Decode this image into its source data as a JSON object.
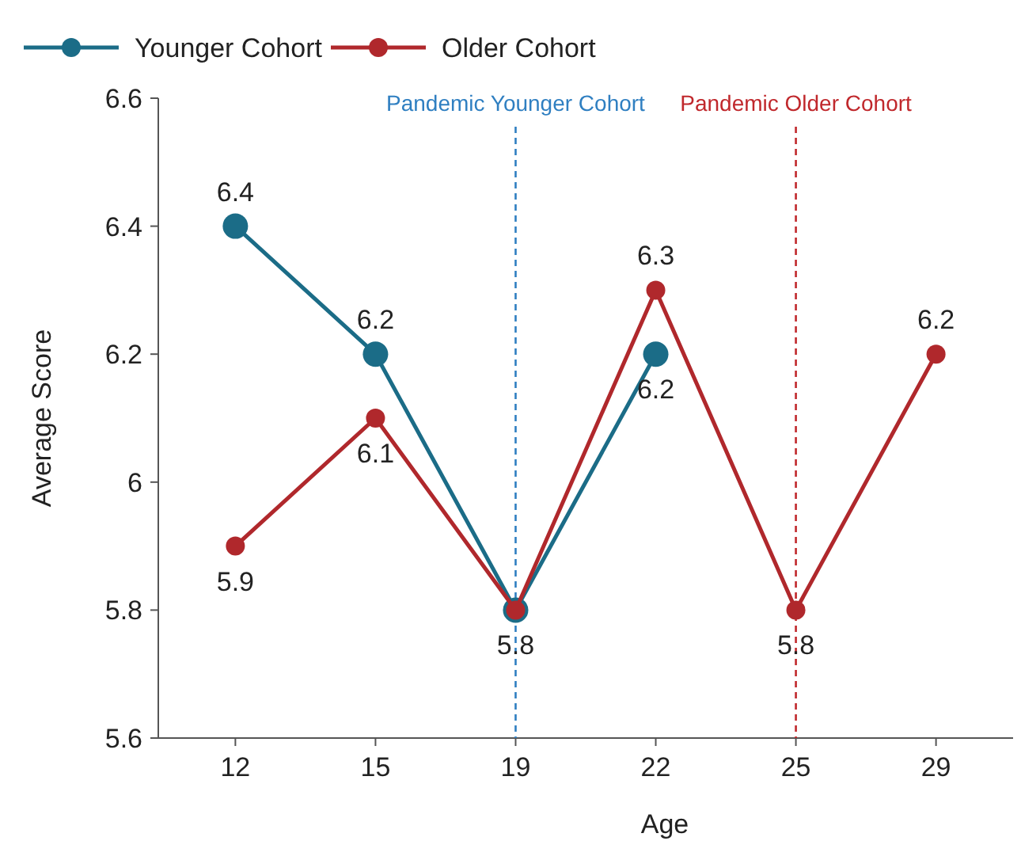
{
  "chart_data": {
    "type": "line",
    "xlabel": "Age",
    "ylabel": "Average Score",
    "categories": [
      "12",
      "15",
      "19",
      "22",
      "25",
      "29"
    ],
    "series": [
      {
        "name": "Younger Cohort",
        "color": "#1b6c87",
        "values": [
          6.4,
          6.2,
          5.8,
          6.2,
          null,
          null
        ],
        "value_labels": [
          "6.4",
          "6.2",
          null,
          "6.2",
          null,
          null
        ]
      },
      {
        "name": "Older Cohort",
        "color": "#b0282c",
        "values": [
          5.9,
          6.1,
          5.8,
          6.3,
          5.8,
          6.2
        ],
        "value_labels": [
          "5.9",
          "6.1",
          "5.8",
          "6.3",
          "5.8",
          "6.2"
        ]
      }
    ],
    "ylim": [
      5.6,
      6.6
    ],
    "yticks": [
      5.6,
      5.8,
      {
        "value": 6,
        "label": "6"
      },
      6.2,
      6.4,
      6.6
    ],
    "ref_lines": [
      {
        "axis": "x",
        "value": "19",
        "label": "Pandemic Younger Cohort",
        "color": "#2f7fc1",
        "line_style": "dashed"
      },
      {
        "axis": "x",
        "value": "25",
        "label": "Pandemic Older Cohort",
        "color": "#c0282c",
        "line_style": "dashed"
      }
    ],
    "legend": "top left",
    "marker": "circle",
    "line_style": "solid"
  }
}
